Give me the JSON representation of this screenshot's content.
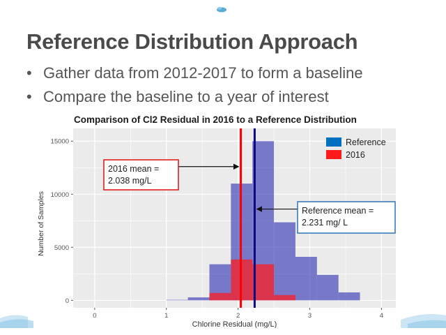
{
  "slide": {
    "title": "Reference Distribution Approach",
    "bullets": [
      "Gather data from 2012-2017 to form a baseline",
      "Compare the baseline to a year of interest"
    ]
  },
  "colors": {
    "reference": "#2b2bb0",
    "year2016": "#ff1a1a",
    "reference_mean_line": "#0a0a80",
    "year2016_mean_line": "#ff0000",
    "panel": "#ebebeb",
    "grid": "#ffffff",
    "callout_2016_border": "#e01010",
    "callout_reference_border": "#2e74b5"
  },
  "chart_data": {
    "type": "bar",
    "title": "Comparison of Cl2 Residual in 2016 to a Reference Distribution",
    "xlabel": "Chlorine Residual (mg/L)",
    "ylabel": "Number of Samples",
    "xlim": [
      -0.3,
      4.2
    ],
    "ylim": [
      -700,
      16200
    ],
    "x_ticks": [
      0,
      1,
      2,
      3,
      4
    ],
    "y_ticks": [
      0,
      5000,
      10000,
      15000
    ],
    "grid": true,
    "legend_position": "top-right",
    "bin_edges": [
      1.0,
      1.3,
      1.6,
      1.9,
      2.2,
      2.5,
      2.8,
      3.1,
      3.4,
      3.7
    ],
    "series": [
      {
        "name": "Reference",
        "values": [
          50,
          280,
          3400,
          11000,
          15000,
          7350,
          4100,
          2400,
          750
        ]
      },
      {
        "name": "2016",
        "values": [
          0,
          0,
          700,
          3850,
          3400,
          500,
          0,
          0,
          0
        ]
      }
    ],
    "mean_lines": [
      {
        "series": "2016",
        "value": 2.038
      },
      {
        "series": "Reference",
        "value": 2.231
      }
    ],
    "annotations": [
      {
        "id": "mean_2016",
        "lines": [
          "2016 mean =",
          "2.038 mg/L"
        ],
        "points_to": 2.038,
        "arrow_y": 12600
      },
      {
        "id": "mean_reference",
        "lines": [
          "Reference mean =",
          "2.231 mg/ L"
        ],
        "points_to": 2.231,
        "arrow_y": 8600
      }
    ]
  }
}
